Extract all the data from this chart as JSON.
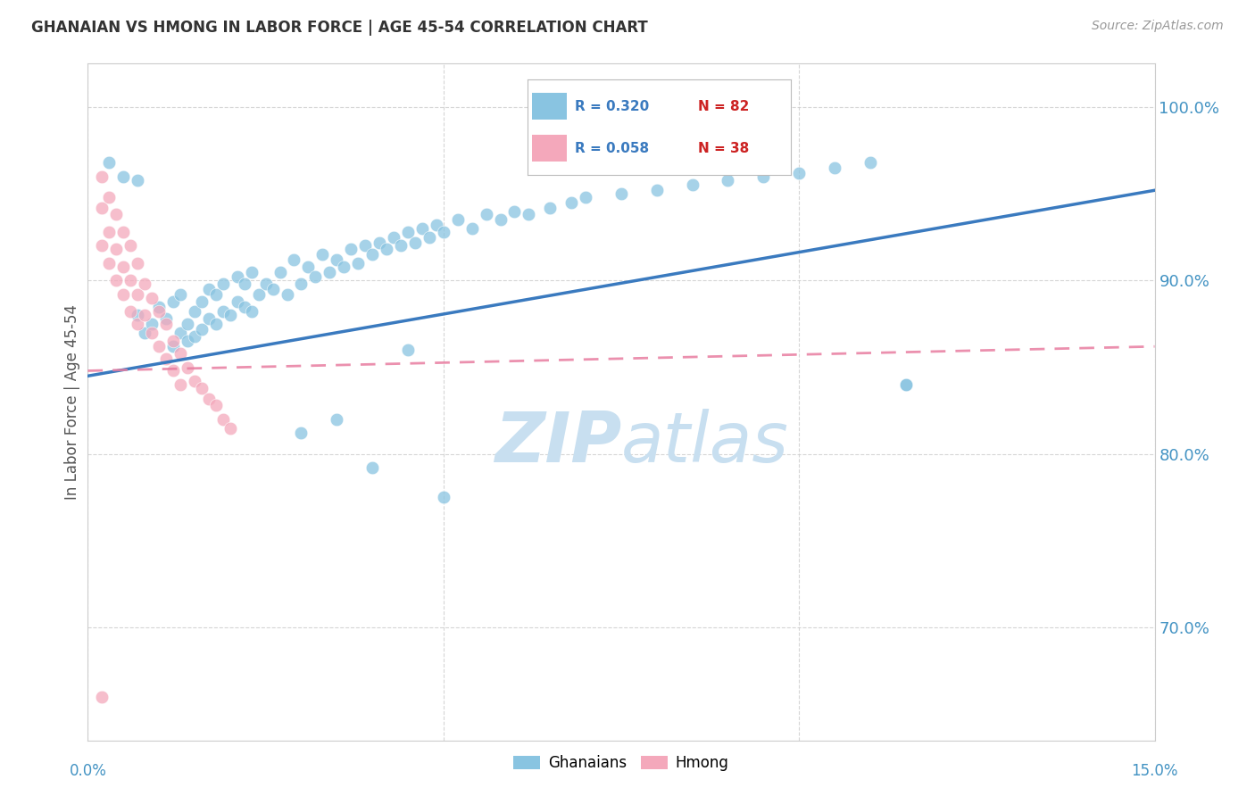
{
  "title": "GHANAIAN VS HMONG IN LABOR FORCE | AGE 45-54 CORRELATION CHART",
  "source": "Source: ZipAtlas.com",
  "ylabel": "In Labor Force | Age 45-54",
  "xmin": 0.0,
  "xmax": 0.15,
  "ymin": 0.635,
  "ymax": 1.025,
  "yticks": [
    0.7,
    0.8,
    0.9,
    1.0
  ],
  "ytick_labels": [
    "70.0%",
    "80.0%",
    "90.0%",
    "100.0%"
  ],
  "legend_r1": "R = 0.320",
  "legend_n1": "N = 82",
  "legend_r2": "R = 0.058",
  "legend_n2": "N = 38",
  "blue_color": "#89c4e1",
  "pink_color": "#f4a8bb",
  "blue_line_color": "#3a7abf",
  "pink_line_color": "#e87da0",
  "axis_color": "#4393c3",
  "grid_color": "#cccccc",
  "title_color": "#333333",
  "source_color": "#999999",
  "watermark_color": "#c8dff0",
  "ghanaians_x": [
    0.003,
    0.005,
    0.007,
    0.007,
    0.008,
    0.009,
    0.01,
    0.011,
    0.012,
    0.012,
    0.013,
    0.013,
    0.014,
    0.014,
    0.015,
    0.015,
    0.016,
    0.016,
    0.017,
    0.017,
    0.018,
    0.018,
    0.019,
    0.019,
    0.02,
    0.021,
    0.021,
    0.022,
    0.022,
    0.023,
    0.023,
    0.024,
    0.025,
    0.026,
    0.027,
    0.028,
    0.029,
    0.03,
    0.031,
    0.032,
    0.033,
    0.034,
    0.035,
    0.036,
    0.037,
    0.038,
    0.039,
    0.04,
    0.041,
    0.042,
    0.043,
    0.044,
    0.045,
    0.046,
    0.047,
    0.048,
    0.049,
    0.05,
    0.052,
    0.054,
    0.056,
    0.058,
    0.06,
    0.062,
    0.065,
    0.068,
    0.07,
    0.075,
    0.08,
    0.085,
    0.09,
    0.095,
    0.1,
    0.105,
    0.11,
    0.115,
    0.03,
    0.035,
    0.04,
    0.045,
    0.05,
    0.115
  ],
  "ghanaians_y": [
    0.968,
    0.96,
    0.88,
    0.958,
    0.87,
    0.875,
    0.885,
    0.878,
    0.862,
    0.888,
    0.87,
    0.892,
    0.865,
    0.875,
    0.868,
    0.882,
    0.872,
    0.888,
    0.878,
    0.895,
    0.875,
    0.892,
    0.882,
    0.898,
    0.88,
    0.888,
    0.902,
    0.885,
    0.898,
    0.882,
    0.905,
    0.892,
    0.898,
    0.895,
    0.905,
    0.892,
    0.912,
    0.898,
    0.908,
    0.902,
    0.915,
    0.905,
    0.912,
    0.908,
    0.918,
    0.91,
    0.92,
    0.915,
    0.922,
    0.918,
    0.925,
    0.92,
    0.928,
    0.922,
    0.93,
    0.925,
    0.932,
    0.928,
    0.935,
    0.93,
    0.938,
    0.935,
    0.94,
    0.938,
    0.942,
    0.945,
    0.948,
    0.95,
    0.952,
    0.955,
    0.958,
    0.96,
    0.962,
    0.965,
    0.968,
    0.84,
    0.812,
    0.82,
    0.792,
    0.86,
    0.775,
    0.84
  ],
  "hmong_x": [
    0.002,
    0.002,
    0.002,
    0.003,
    0.003,
    0.003,
    0.004,
    0.004,
    0.004,
    0.005,
    0.005,
    0.005,
    0.006,
    0.006,
    0.006,
    0.007,
    0.007,
    0.007,
    0.008,
    0.008,
    0.009,
    0.009,
    0.01,
    0.01,
    0.011,
    0.011,
    0.012,
    0.012,
    0.013,
    0.013,
    0.014,
    0.015,
    0.016,
    0.017,
    0.018,
    0.019,
    0.02,
    0.002
  ],
  "hmong_y": [
    0.96,
    0.942,
    0.92,
    0.948,
    0.928,
    0.91,
    0.938,
    0.918,
    0.9,
    0.928,
    0.908,
    0.892,
    0.92,
    0.9,
    0.882,
    0.91,
    0.892,
    0.875,
    0.898,
    0.88,
    0.89,
    0.87,
    0.882,
    0.862,
    0.875,
    0.855,
    0.865,
    0.848,
    0.858,
    0.84,
    0.85,
    0.842,
    0.838,
    0.832,
    0.828,
    0.82,
    0.815,
    0.66
  ],
  "blue_trendline_x": [
    0.0,
    0.15
  ],
  "blue_trendline_y": [
    0.845,
    0.952
  ],
  "pink_trendline_x": [
    0.0,
    0.15
  ],
  "pink_trendline_y": [
    0.848,
    0.862
  ]
}
